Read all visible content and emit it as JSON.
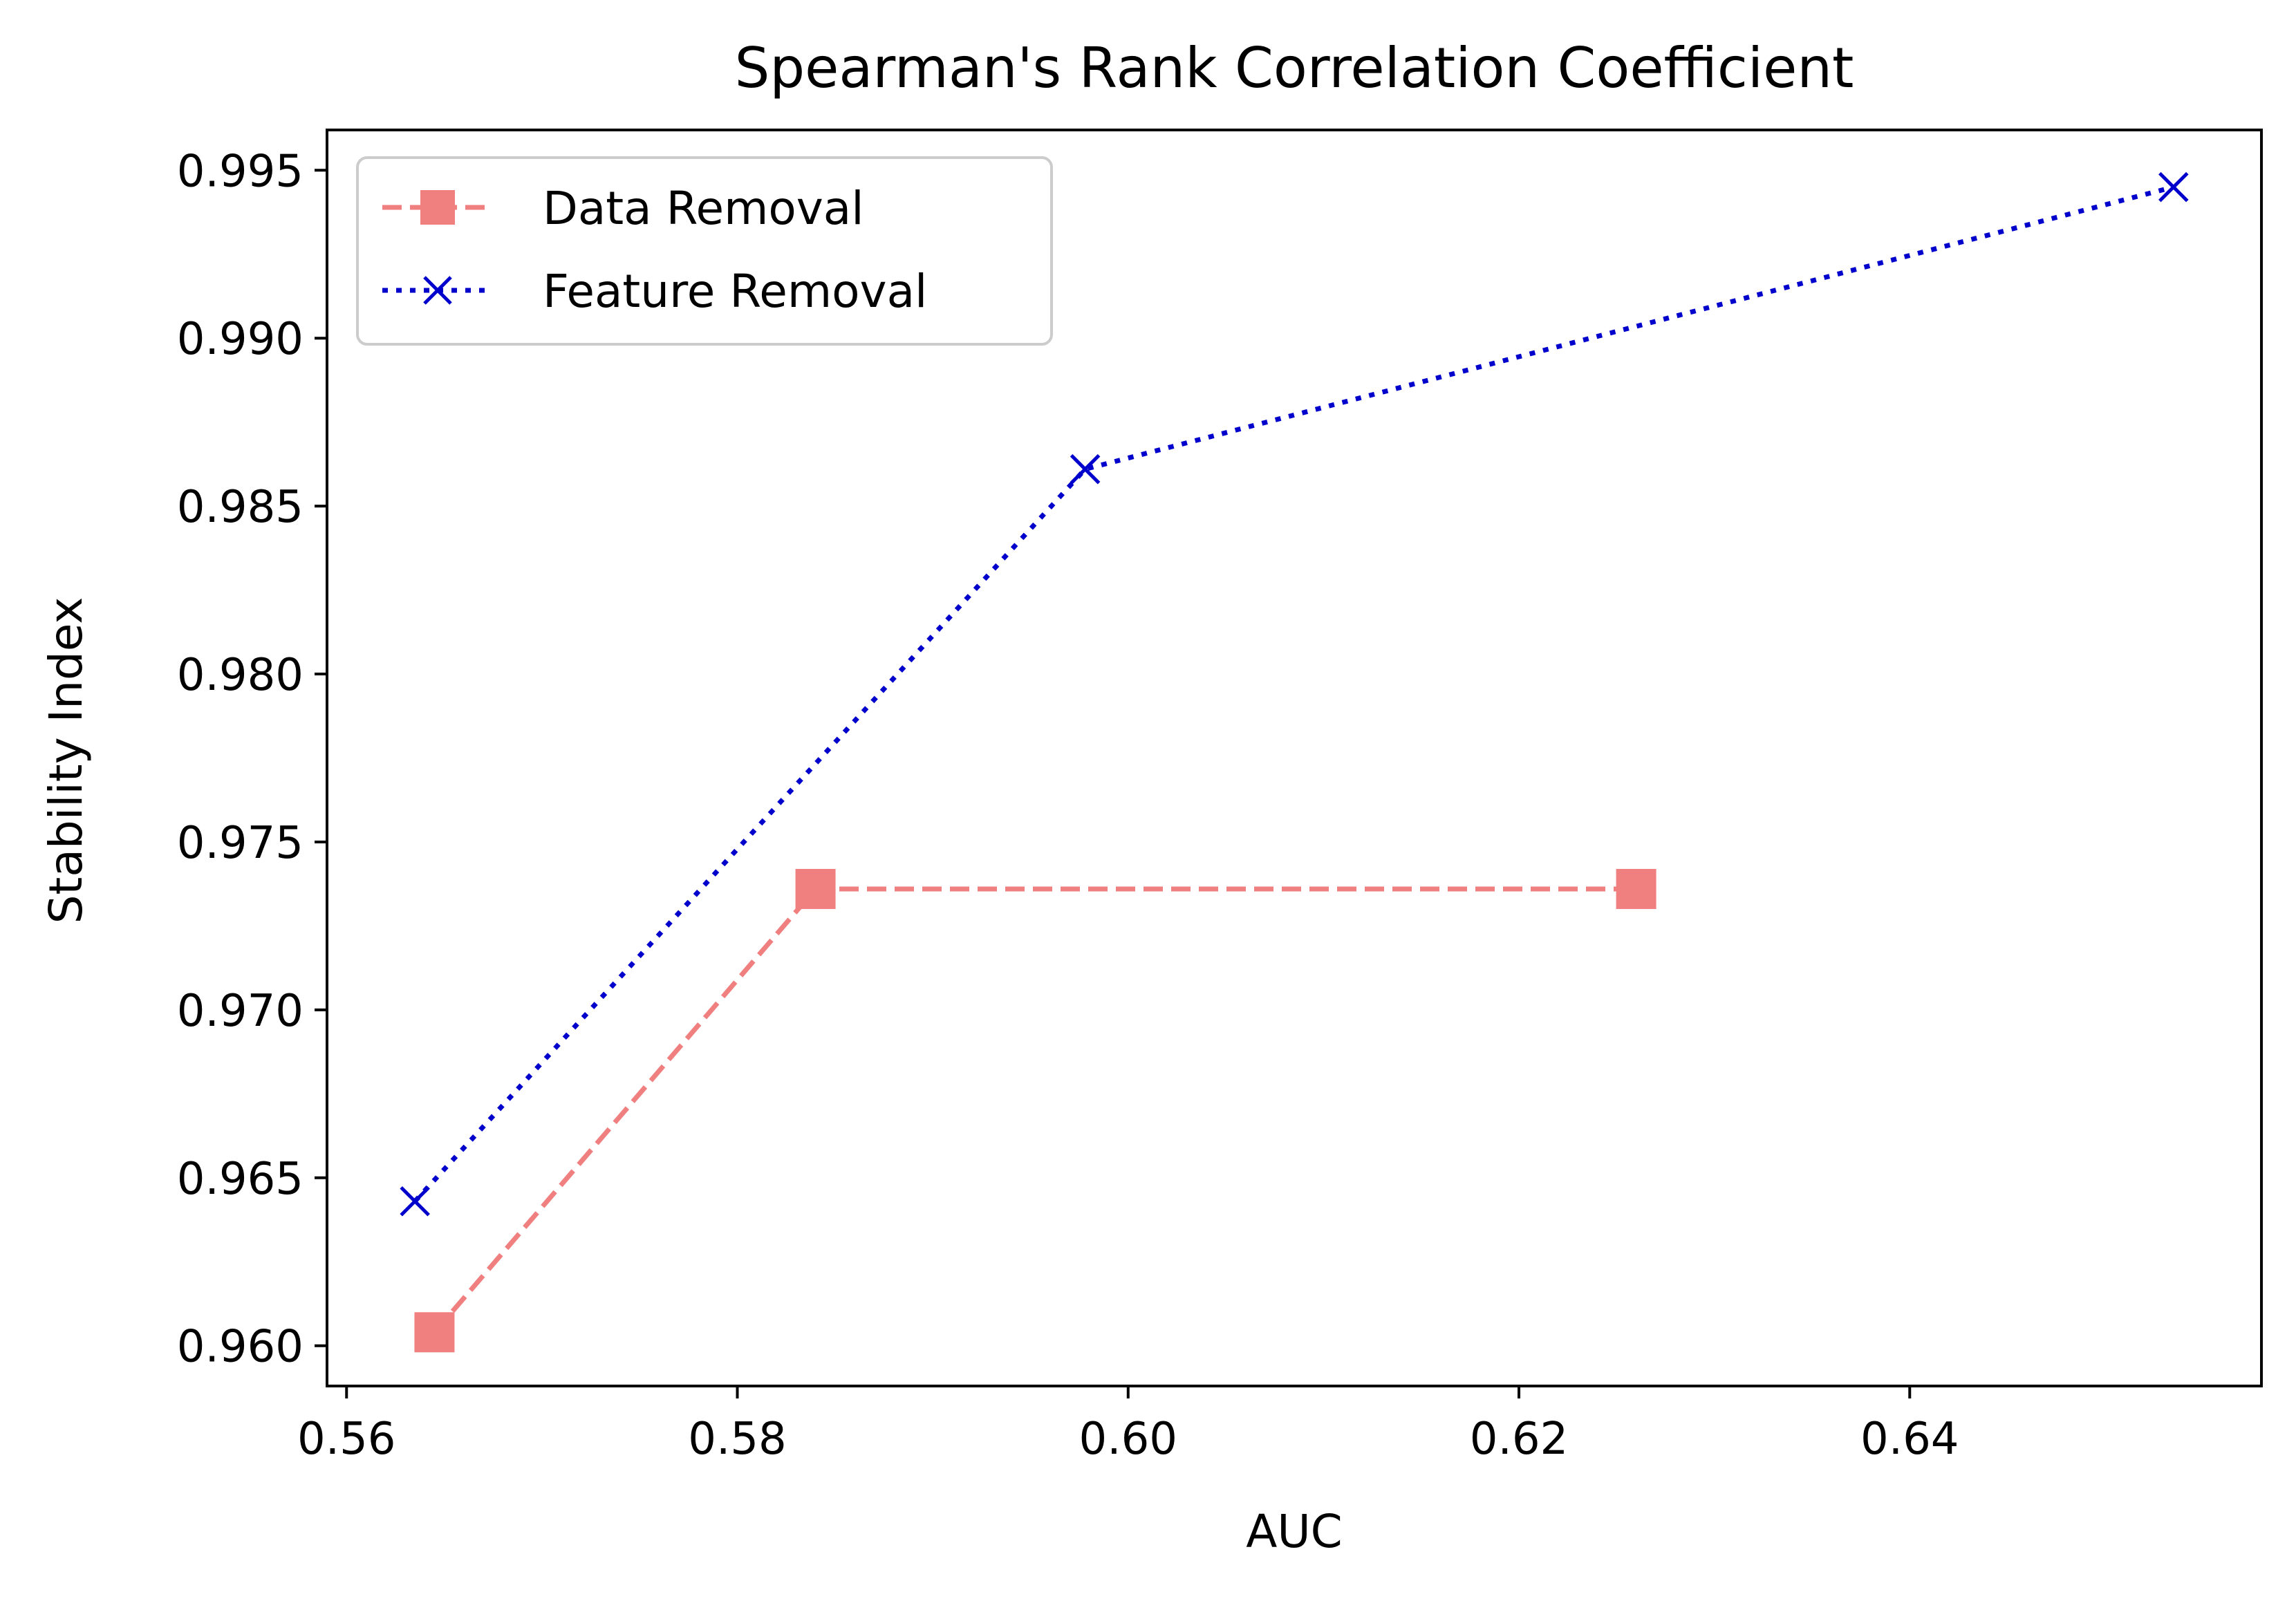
{
  "chart_data": {
    "type": "line",
    "title": "Spearman's Rank Correlation Coefficient",
    "xlabel": "AUC",
    "ylabel": "Stability Index",
    "xlim": [
      0.559,
      0.658
    ],
    "ylim": [
      0.9588,
      0.9962
    ],
    "xticks": [
      0.56,
      0.58,
      0.6,
      0.62,
      0.64
    ],
    "xtick_labels": [
      "0.56",
      "0.58",
      "0.60",
      "0.62",
      "0.64"
    ],
    "yticks": [
      0.96,
      0.965,
      0.97,
      0.975,
      0.98,
      0.985,
      0.99,
      0.995
    ],
    "ytick_labels": [
      "0.960",
      "0.965",
      "0.970",
      "0.975",
      "0.980",
      "0.985",
      "0.990",
      "0.995"
    ],
    "grid": false,
    "legend_position": "top-left",
    "series": [
      {
        "name": "Data Removal",
        "color": "#f08080",
        "linestyle": "dashed",
        "marker": "square",
        "x": [
          0.5645,
          0.584,
          0.626
        ],
        "y": [
          0.9604,
          0.9736,
          0.9736
        ]
      },
      {
        "name": "Feature Removal",
        "color": "#0000cd",
        "linestyle": "dotted",
        "marker": "x",
        "x": [
          0.5635,
          0.5978,
          0.6535
        ],
        "y": [
          0.9643,
          0.9861,
          0.9945
        ]
      }
    ]
  }
}
